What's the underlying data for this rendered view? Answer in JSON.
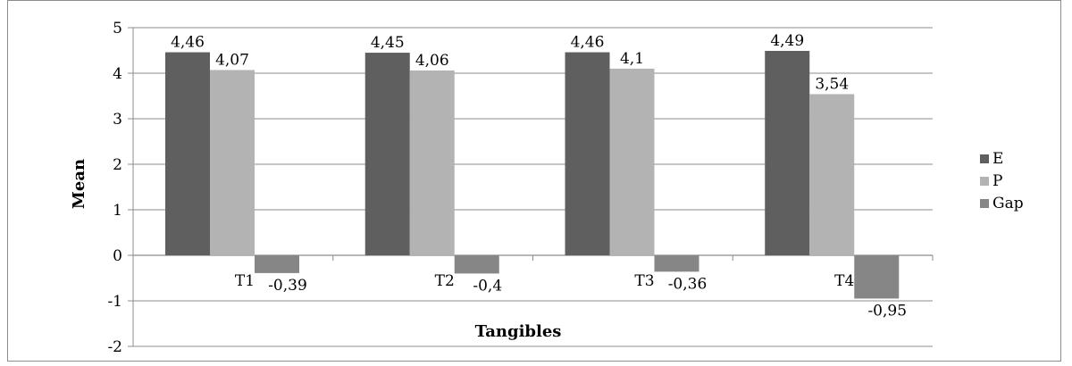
{
  "chart_data": {
    "type": "bar",
    "title": "",
    "xlabel": "Tangibles",
    "ylabel": "Mean",
    "categories": [
      "T1",
      "T2",
      "T3",
      "T4"
    ],
    "series": [
      {
        "name": "E",
        "values": [
          4.46,
          4.45,
          4.46,
          4.49
        ],
        "labels": [
          "4,46",
          "4,45",
          "4,46",
          "4,49"
        ],
        "color": "#5f5f5f"
      },
      {
        "name": "P",
        "values": [
          4.07,
          4.06,
          4.1,
          3.54
        ],
        "labels": [
          "4,07",
          "4,06",
          "4,1",
          "3,54"
        ],
        "color": "#b3b3b3"
      },
      {
        "name": "Gap",
        "values": [
          -0.39,
          -0.4,
          -0.36,
          -0.95
        ],
        "labels": [
          "-0,39",
          "-0,4",
          "-0,36",
          "-0,95"
        ],
        "color": "#868686"
      }
    ],
    "ylim": [
      -2,
      5
    ],
    "yticks": [
      "-2",
      "-1",
      "0",
      "1",
      "2",
      "3",
      "4",
      "5"
    ],
    "grid": true,
    "legend": "right"
  }
}
